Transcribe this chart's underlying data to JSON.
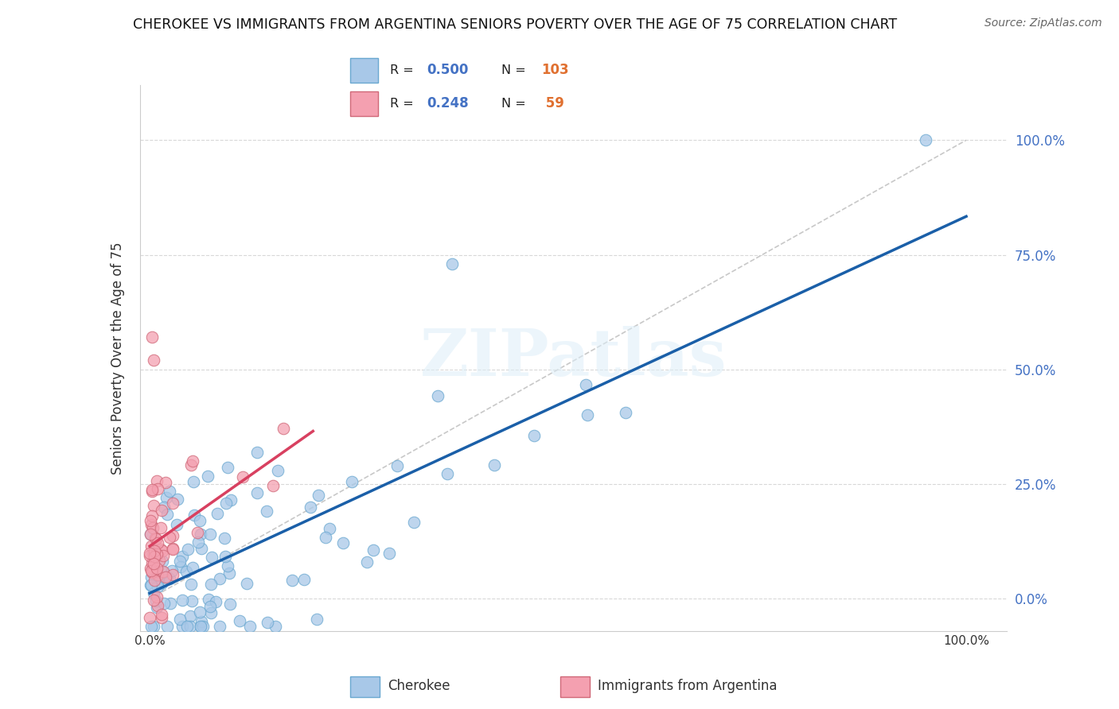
{
  "title": "CHEROKEE VS IMMIGRANTS FROM ARGENTINA SENIORS POVERTY OVER THE AGE OF 75 CORRELATION CHART",
  "source": "Source: ZipAtlas.com",
  "ylabel": "Seniors Poverty Over the Age of 75",
  "watermark": "ZIPatlas",
  "cherokee_color": "#a8c8e8",
  "cherokee_edge": "#6aa8d0",
  "argentina_color": "#f4a0b0",
  "argentina_edge": "#d06878",
  "regression_blue_color": "#1a5fa8",
  "regression_pink_color": "#d84060",
  "diagonal_color": "#c8c8c8",
  "yticks": [
    0.0,
    0.25,
    0.5,
    0.75,
    1.0
  ],
  "ytick_labels": [
    "0.0%",
    "25.0%",
    "50.0%",
    "75.0%",
    "100.0%"
  ],
  "R_cherokee": "0.500",
  "N_cherokee": "103",
  "R_argentina": "0.248",
  "N_argentina": " 59",
  "legend_blue_label": "Cherokee",
  "legend_pink_label": "Immigrants from Argentina"
}
